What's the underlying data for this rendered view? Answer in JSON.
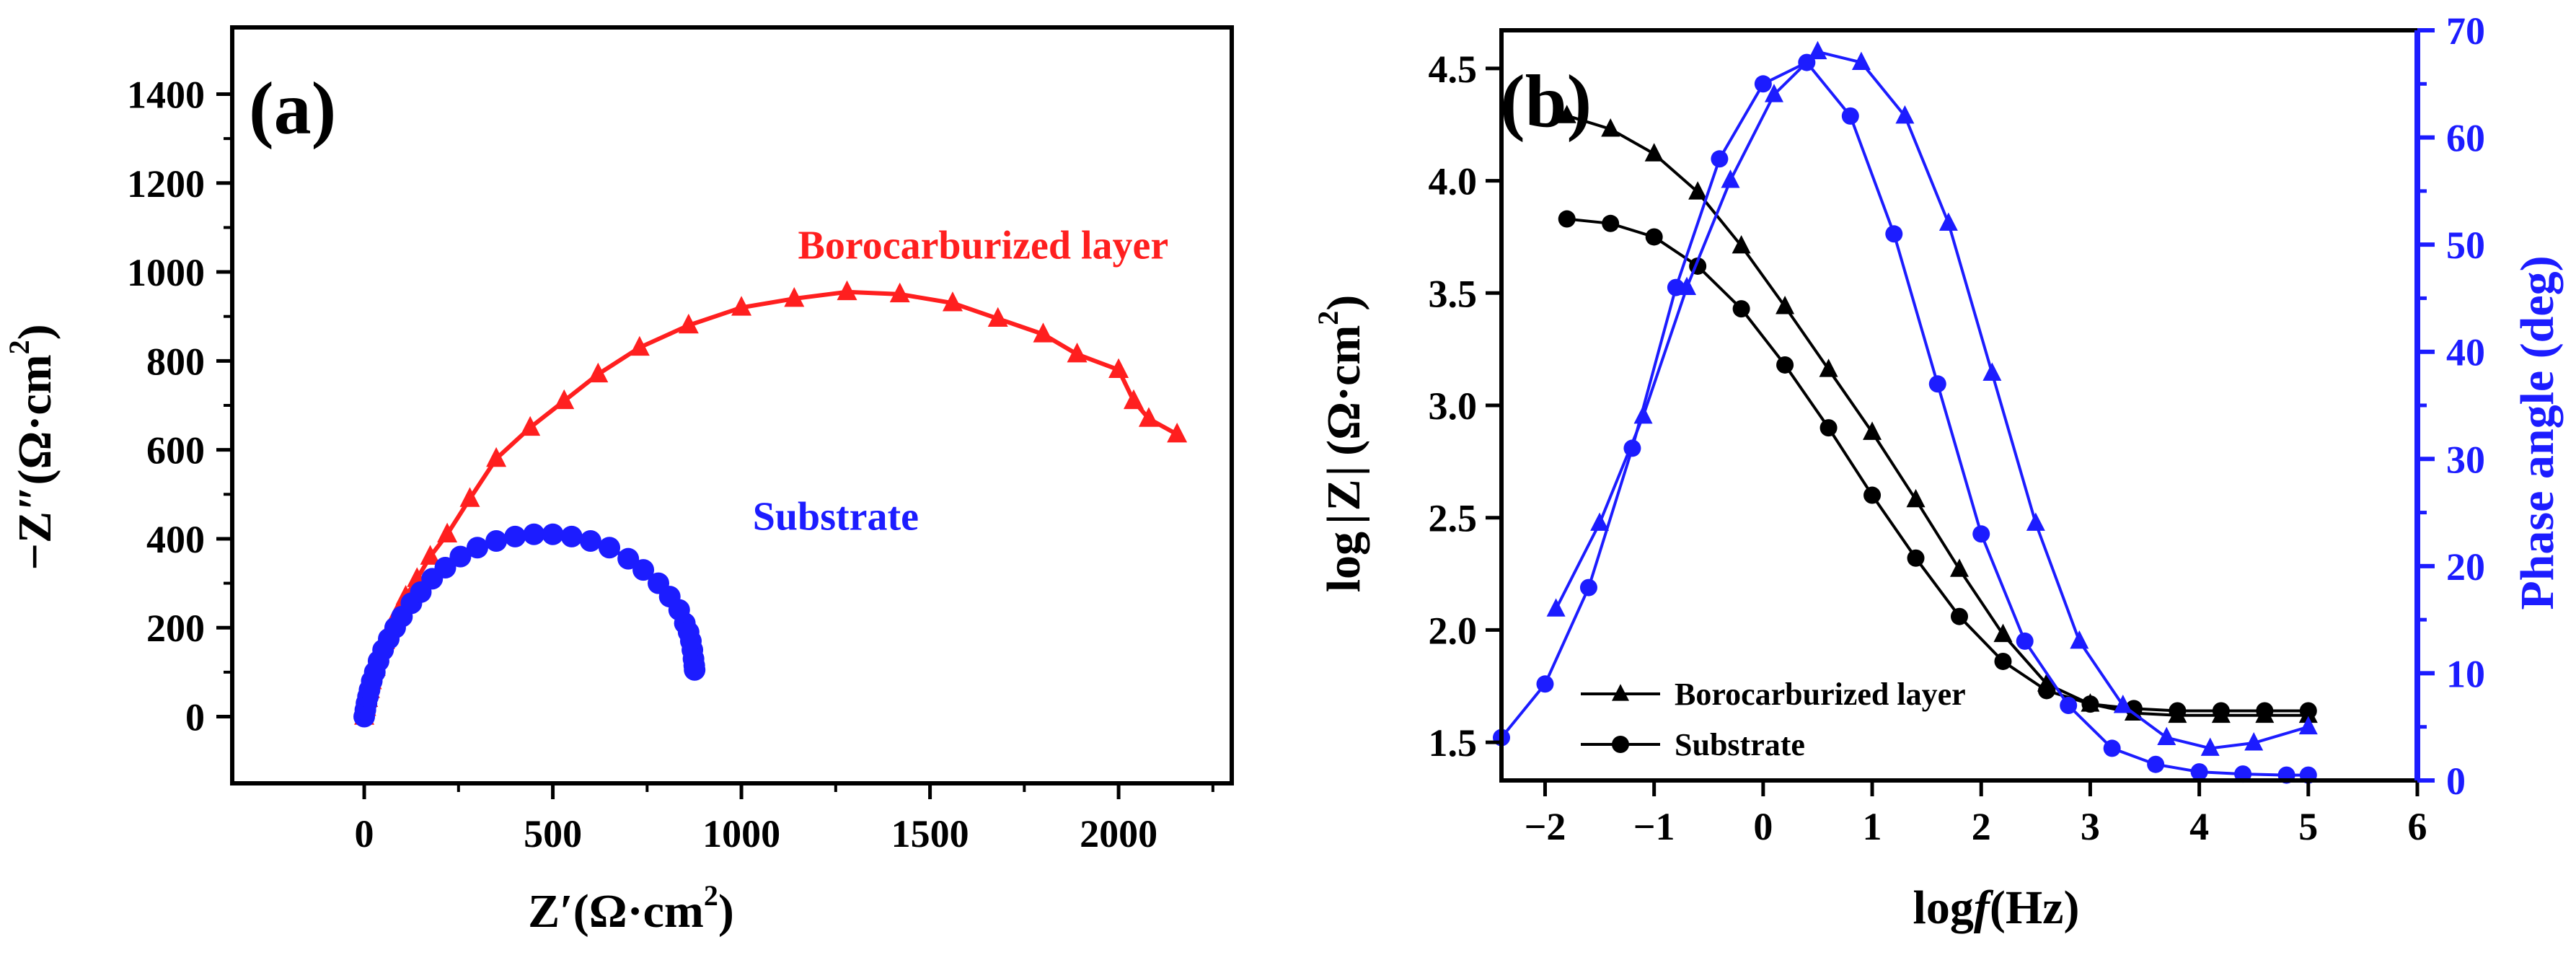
{
  "colors": {
    "red": "#ff1f1f",
    "blue": "#1c1cff",
    "black": "#000000"
  },
  "chart_data": [
    {
      "panel": "(a)",
      "type": "scatter",
      "xlabel": "Z′(Ω·cm²)",
      "xlabel_main": "Z′(Ω·cm",
      "xlabel_sup": "2",
      "xlabel_tail": ")",
      "ylabel": "−Z″(Ω·cm²)",
      "ylabel_main": "−Z″(Ω·cm",
      "ylabel_sup": "2",
      "ylabel_tail": ")",
      "xlim": [
        -350,
        2300
      ],
      "ylim": [
        -150,
        1550
      ],
      "xticks": [
        0,
        500,
        1000,
        1500,
        2000
      ],
      "yticks": [
        0,
        200,
        400,
        600,
        800,
        1000,
        1200,
        1400
      ],
      "series": [
        {
          "name": "Borocarburized layer",
          "color": "#ff1f1f",
          "marker": "triangle",
          "label_anchor": [
            1150,
            1030
          ],
          "x": [
            0,
            5,
            10,
            15,
            20,
            30,
            40,
            55,
            70,
            90,
            110,
            140,
            175,
            220,
            280,
            350,
            440,
            530,
            620,
            730,
            860,
            1000,
            1140,
            1280,
            1420,
            1560,
            1680,
            1800,
            1890,
            2000,
            2040,
            2080,
            2155
          ],
          "y": [
            0,
            20,
            40,
            60,
            80,
            110,
            140,
            170,
            200,
            235,
            270,
            310,
            360,
            410,
            490,
            580,
            650,
            710,
            770,
            830,
            880,
            920,
            940,
            955,
            950,
            930,
            895,
            860,
            815,
            780,
            710,
            670,
            635
          ]
        },
        {
          "name": "Substrate",
          "color": "#1c1cff",
          "marker": "circle",
          "label_anchor": [
            1030,
            420
          ],
          "x": [
            0,
            3,
            6,
            10,
            14,
            20,
            28,
            38,
            50,
            65,
            82,
            100,
            125,
            150,
            180,
            215,
            255,
            300,
            350,
            400,
            450,
            500,
            550,
            600,
            650,
            700,
            740,
            780,
            810,
            835,
            850,
            860,
            866,
            870,
            873,
            875,
            876
          ],
          "y": [
            0,
            15,
            30,
            45,
            60,
            80,
            100,
            125,
            150,
            175,
            200,
            225,
            255,
            280,
            310,
            335,
            360,
            380,
            395,
            405,
            410,
            410,
            405,
            395,
            380,
            355,
            330,
            300,
            270,
            240,
            210,
            190,
            170,
            150,
            130,
            115,
            105
          ]
        }
      ]
    },
    {
      "panel": "(b)",
      "type": "line",
      "xlabel": "logf(Hz)",
      "xlabel_a": "log",
      "xlabel_b": "f",
      "xlabel_c": "(Hz)",
      "ylabel_left": "log|Z| (Ω·cm²)",
      "ylabel_left_a": "log",
      "ylabel_left_b": "Z",
      "ylabel_left_c": "(Ω·cm",
      "ylabel_left_sup": "2",
      "ylabel_left_d": ")",
      "ylabel_right": "Phase angle (deg)",
      "xlim": [
        -2.4,
        6
      ],
      "ylim_left": [
        1.33,
        4.67
      ],
      "ylim_right": [
        0,
        70
      ],
      "xticks": [
        -2,
        -1,
        0,
        1,
        2,
        3,
        4,
        5,
        6
      ],
      "xtick_labels": [
        "−2",
        "−1",
        "0",
        "1",
        "2",
        "3",
        "4",
        "5",
        "6"
      ],
      "yticks_left": [
        1.5,
        2.0,
        2.5,
        3.0,
        3.5,
        4.0,
        4.5
      ],
      "ytick_labels_left": [
        "1.5",
        "2.0",
        "2.5",
        "3.0",
        "3.5",
        "4.0",
        "4.5"
      ],
      "yticks_right": [
        0,
        10,
        20,
        30,
        40,
        50,
        60,
        70
      ],
      "legend": [
        "Borocarburized layer",
        "Substrate"
      ],
      "legend_position": "bottom-left",
      "series": [
        {
          "name": "Borocarburized layer |Z|",
          "axis": "left",
          "color": "#000000",
          "marker": "triangle",
          "x": [
            -1.8,
            -1.4,
            -1.0,
            -0.6,
            -0.2,
            0.2,
            0.6,
            1.0,
            1.4,
            1.8,
            2.2,
            2.6,
            3.0,
            3.4,
            3.8,
            4.2,
            4.6,
            5.0
          ],
          "y": [
            4.29,
            4.23,
            4.12,
            3.95,
            3.71,
            3.44,
            3.16,
            2.88,
            2.58,
            2.27,
            1.98,
            1.76,
            1.67,
            1.63,
            1.62,
            1.62,
            1.62,
            1.62
          ]
        },
        {
          "name": "Substrate |Z|",
          "axis": "left",
          "color": "#000000",
          "marker": "circle",
          "x": [
            -1.8,
            -1.4,
            -1.0,
            -0.6,
            -0.2,
            0.2,
            0.6,
            1.0,
            1.4,
            1.8,
            2.2,
            2.6,
            3.0,
            3.4,
            3.8,
            4.2,
            4.6,
            5.0
          ],
          "y": [
            3.83,
            3.81,
            3.75,
            3.62,
            3.43,
            3.18,
            2.9,
            2.6,
            2.32,
            2.06,
            1.86,
            1.73,
            1.67,
            1.65,
            1.64,
            1.64,
            1.64,
            1.64
          ]
        },
        {
          "name": "Borocarburized layer phase",
          "axis": "right",
          "color": "#1c1cff",
          "marker": "triangle",
          "x": [
            -1.9,
            -1.5,
            -1.1,
            -0.7,
            -0.3,
            0.1,
            0.5,
            0.9,
            1.3,
            1.7,
            2.1,
            2.5,
            2.9,
            3.3,
            3.7,
            4.1,
            4.5,
            5.0
          ],
          "y": [
            16,
            24,
            34,
            46,
            56,
            64,
            68,
            67,
            62,
            52,
            38,
            24,
            13,
            7,
            4,
            3,
            3.5,
            5
          ]
        },
        {
          "name": "Substrate phase",
          "axis": "right",
          "color": "#1c1cff",
          "marker": "circle",
          "x": [
            -2.4,
            -2.0,
            -1.6,
            -1.2,
            -0.8,
            -0.4,
            0.0,
            0.4,
            0.8,
            1.2,
            1.6,
            2.0,
            2.4,
            2.8,
            3.2,
            3.6,
            4.0,
            4.4,
            4.8,
            5.0
          ],
          "y": [
            4,
            9,
            18,
            31,
            46,
            58,
            65,
            67,
            62,
            51,
            37,
            23,
            13,
            7,
            3,
            1.5,
            0.8,
            0.6,
            0.5,
            0.5
          ]
        }
      ]
    }
  ]
}
